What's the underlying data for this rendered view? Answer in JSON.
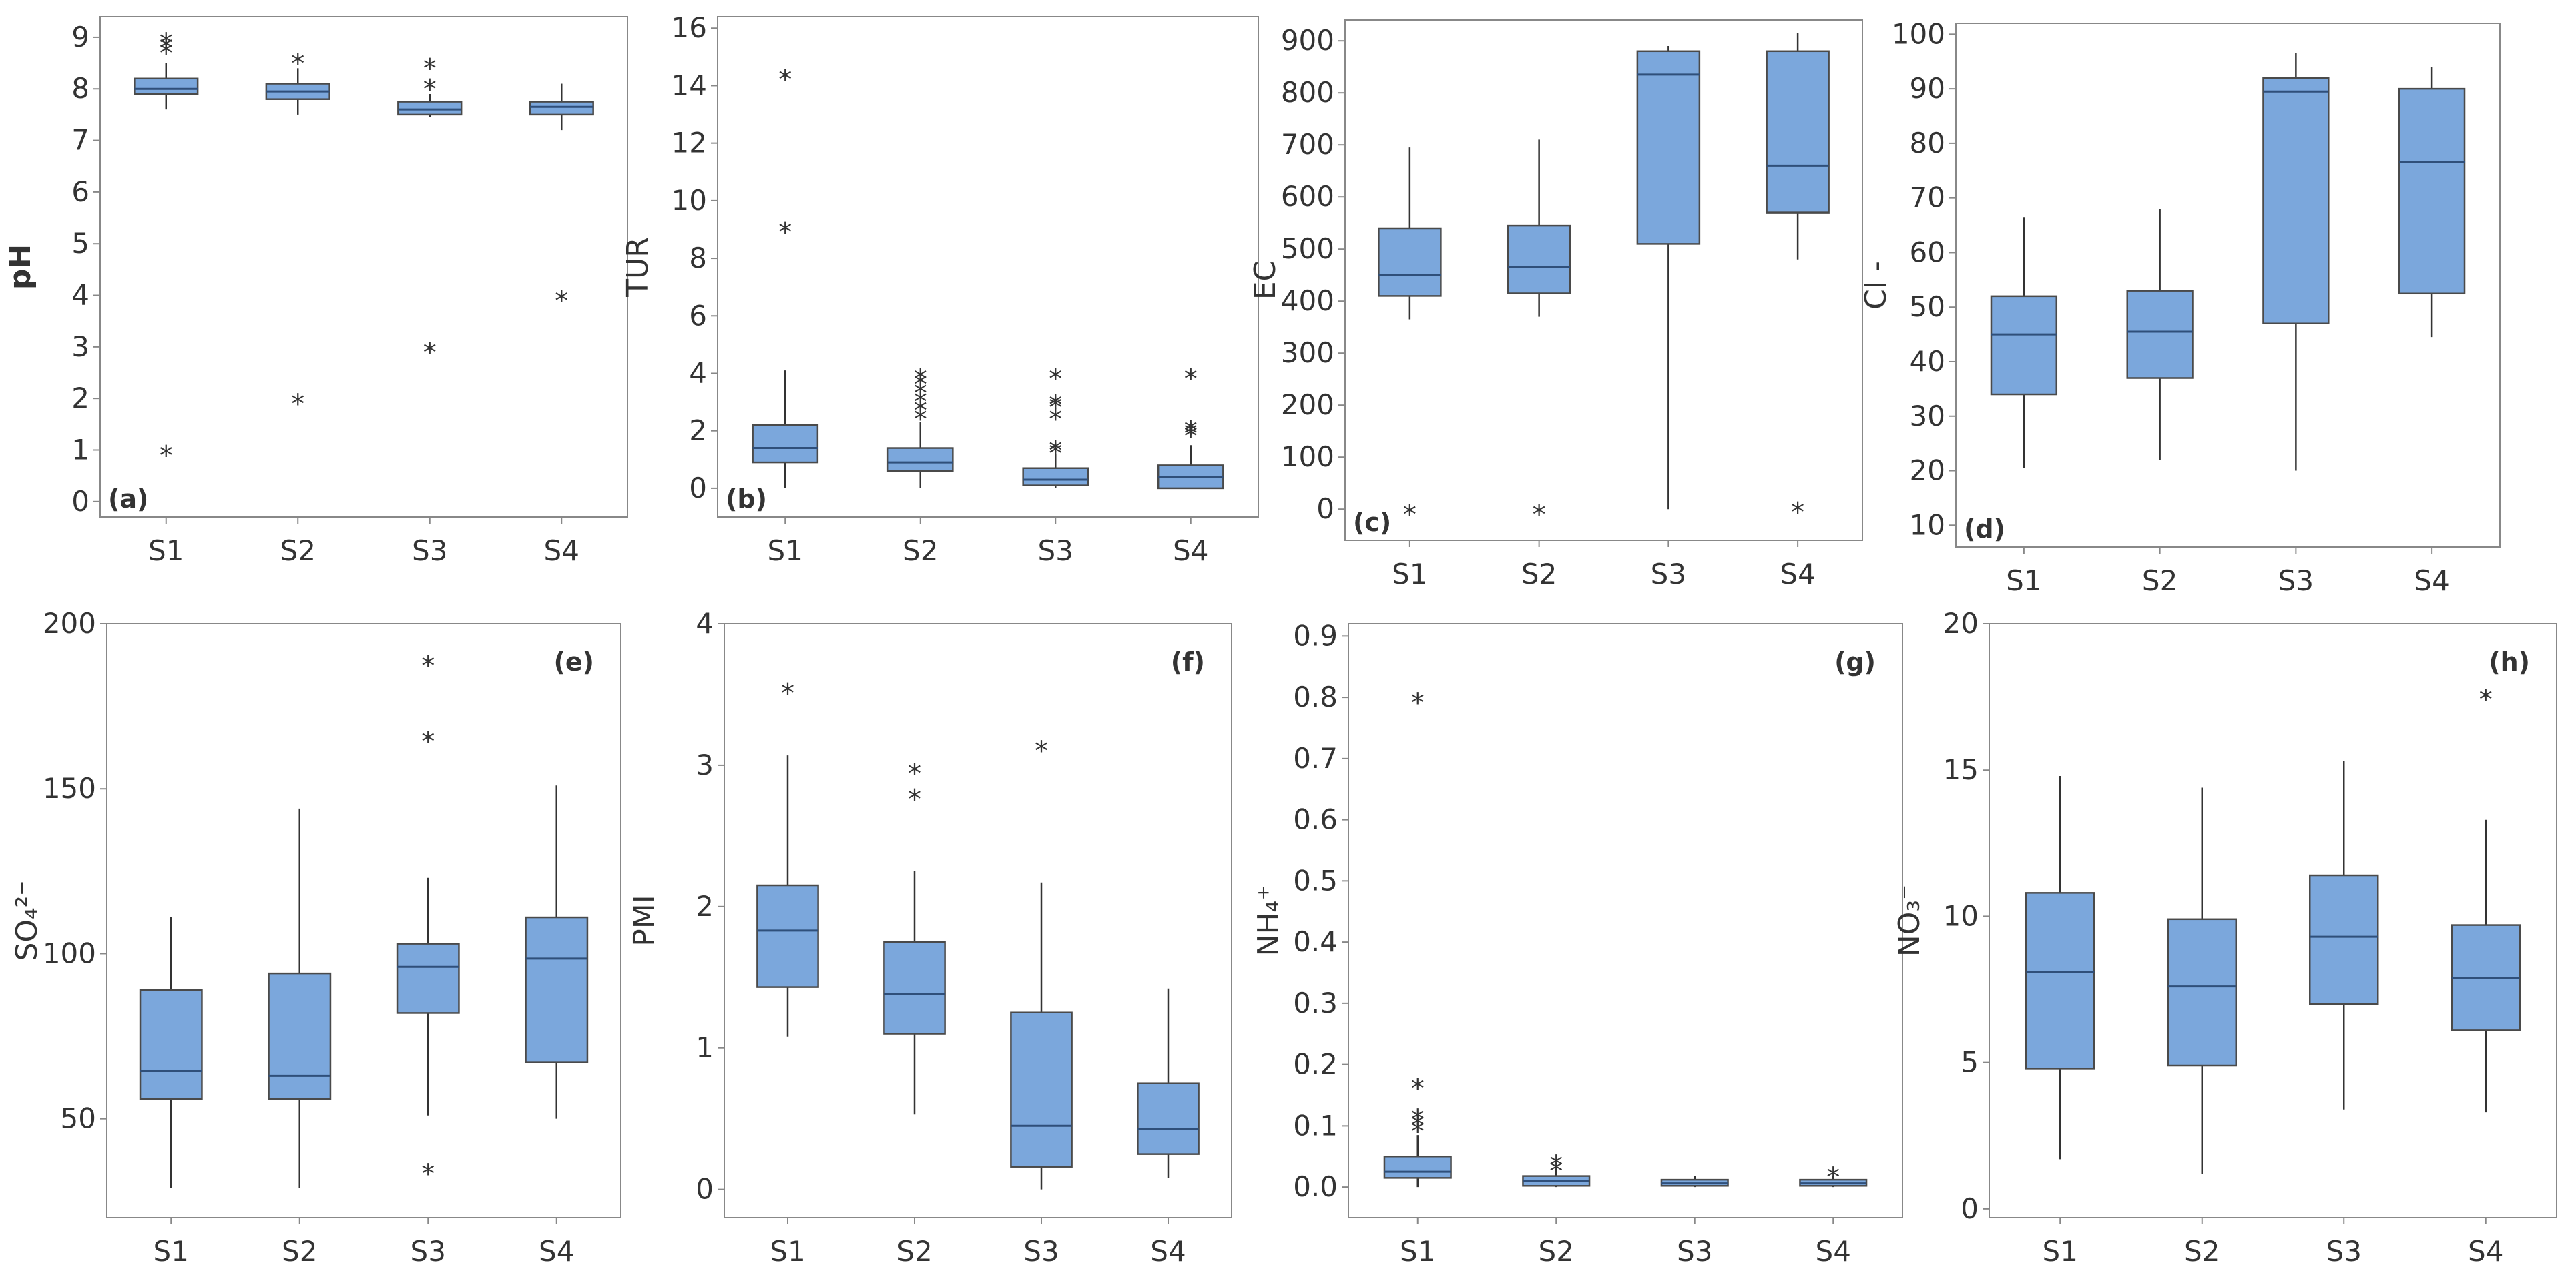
{
  "chart_data": [
    {
      "type": "box",
      "panel": "(a)",
      "ylabel": "pH",
      "ylabel_bold": true,
      "yticks": [
        0,
        1,
        2,
        3,
        4,
        5,
        6,
        7,
        8,
        9
      ],
      "ylim": [
        -0.3,
        9.4
      ],
      "categories": [
        "S1",
        "S2",
        "S3",
        "S4"
      ],
      "boxes": [
        {
          "category": "S1",
          "q1": 7.9,
          "median": 8.0,
          "q3": 8.2,
          "whisker_low": 7.6,
          "whisker_high": 8.5,
          "outliers": [
            8.8,
            8.9,
            9.0,
            1.0
          ]
        },
        {
          "category": "S2",
          "q1": 7.8,
          "median": 7.95,
          "q3": 8.1,
          "whisker_low": 7.5,
          "whisker_high": 8.4,
          "outliers": [
            8.6,
            2.0
          ]
        },
        {
          "category": "S3",
          "q1": 7.5,
          "median": 7.6,
          "q3": 7.75,
          "whisker_low": 7.45,
          "whisker_high": 7.9,
          "outliers": [
            8.1,
            8.5,
            3.0
          ]
        },
        {
          "category": "S4",
          "q1": 7.5,
          "median": 7.65,
          "q3": 7.75,
          "whisker_low": 7.2,
          "whisker_high": 8.1,
          "outliers": [
            4.0
          ]
        }
      ]
    },
    {
      "type": "box",
      "panel": "(b)",
      "ylabel": "TUR",
      "ylabel_bold": false,
      "yticks": [
        0,
        2,
        4,
        6,
        8,
        10,
        12,
        14,
        16
      ],
      "ylim": [
        -1.0,
        16.4
      ],
      "categories": [
        "S1",
        "S2",
        "S3",
        "S4"
      ],
      "boxes": [
        {
          "category": "S1",
          "q1": 0.9,
          "median": 1.4,
          "q3": 2.2,
          "whisker_low": 0.0,
          "whisker_high": 4.1,
          "outliers": [
            9.1,
            14.4
          ]
        },
        {
          "category": "S2",
          "q1": 0.6,
          "median": 0.9,
          "q3": 1.4,
          "whisker_low": 0.0,
          "whisker_high": 2.3,
          "outliers": [
            2.6,
            2.9,
            3.2,
            3.5,
            3.8,
            4.0
          ]
        },
        {
          "category": "S3",
          "q1": 0.1,
          "median": 0.3,
          "q3": 0.7,
          "whisker_low": 0.0,
          "whisker_high": 1.2,
          "outliers": [
            1.4,
            1.5,
            2.6,
            3.0,
            3.1,
            4.0
          ]
        },
        {
          "category": "S4",
          "q1": 0.0,
          "median": 0.4,
          "q3": 0.8,
          "whisker_low": 0.0,
          "whisker_high": 1.5,
          "outliers": [
            2.0,
            2.1,
            2.2,
            4.0
          ]
        }
      ]
    },
    {
      "type": "box",
      "panel": "(c)",
      "ylabel": "EC",
      "ylabel_bold": false,
      "yticks": [
        0,
        100,
        200,
        300,
        400,
        500,
        600,
        700,
        800,
        900
      ],
      "ylim": [
        -60,
        940
      ],
      "categories": [
        "S1",
        "S2",
        "S3",
        "S4"
      ],
      "boxes": [
        {
          "category": "S1",
          "q1": 410,
          "median": 450,
          "q3": 540,
          "whisker_low": 365,
          "whisker_high": 695,
          "outliers": [
            0
          ]
        },
        {
          "category": "S2",
          "q1": 415,
          "median": 465,
          "q3": 545,
          "whisker_low": 370,
          "whisker_high": 710,
          "outliers": [
            0
          ]
        },
        {
          "category": "S3",
          "q1": 510,
          "median": 835,
          "q3": 880,
          "whisker_low": 0,
          "whisker_high": 890,
          "outliers": []
        },
        {
          "category": "S4",
          "q1": 570,
          "median": 660,
          "q3": 880,
          "whisker_low": 480,
          "whisker_high": 915,
          "outliers": [
            5
          ]
        }
      ]
    },
    {
      "type": "box",
      "panel": "(d)",
      "ylabel": "Cl -",
      "ylabel_bold": false,
      "yticks": [
        10,
        20,
        30,
        40,
        50,
        60,
        70,
        80,
        90,
        100
      ],
      "ylim": [
        6,
        102
      ],
      "categories": [
        "S1",
        "S2",
        "S3",
        "S4"
      ],
      "boxes": [
        {
          "category": "S1",
          "q1": 34,
          "median": 45,
          "q3": 52,
          "whisker_low": 20.5,
          "whisker_high": 66.5,
          "outliers": []
        },
        {
          "category": "S2",
          "q1": 37,
          "median": 45.5,
          "q3": 53,
          "whisker_low": 22,
          "whisker_high": 68,
          "outliers": []
        },
        {
          "category": "S3",
          "q1": 47,
          "median": 89.5,
          "q3": 92,
          "whisker_low": 20,
          "whisker_high": 96.5,
          "outliers": []
        },
        {
          "category": "S4",
          "q1": 52.5,
          "median": 76.5,
          "q3": 90,
          "whisker_low": 44.5,
          "whisker_high": 94,
          "outliers": []
        }
      ]
    },
    {
      "type": "box",
      "panel": "(e)",
      "ylabel": "SO₄²⁻",
      "ylabel_bold": false,
      "yticks": [
        50,
        100,
        150,
        200
      ],
      "ylim": [
        20,
        200
      ],
      "categories": [
        "S1",
        "S2",
        "S3",
        "S4"
      ],
      "boxes": [
        {
          "category": "S1",
          "q1": 56,
          "median": 64.5,
          "q3": 89,
          "whisker_low": 29,
          "whisker_high": 111,
          "outliers": []
        },
        {
          "category": "S2",
          "q1": 56,
          "median": 63,
          "q3": 94,
          "whisker_low": 29,
          "whisker_high": 144,
          "outliers": []
        },
        {
          "category": "S3",
          "q1": 82,
          "median": 96,
          "q3": 103,
          "whisker_low": 51,
          "whisker_high": 123,
          "outliers": [
            35,
            166,
            189
          ]
        },
        {
          "category": "S4",
          "q1": 67,
          "median": 98.5,
          "q3": 111,
          "whisker_low": 50,
          "whisker_high": 151,
          "outliers": []
        }
      ]
    },
    {
      "type": "box",
      "panel": "(f)",
      "ylabel": "PMI",
      "ylabel_bold": false,
      "yticks": [
        0,
        1,
        2,
        3,
        4
      ],
      "ylim": [
        -0.2,
        4.0
      ],
      "categories": [
        "S1",
        "S2",
        "S3",
        "S4"
      ],
      "boxes": [
        {
          "category": "S1",
          "q1": 1.43,
          "median": 1.83,
          "q3": 2.15,
          "whisker_low": 1.08,
          "whisker_high": 3.07,
          "outliers": [
            3.55
          ]
        },
        {
          "category": "S2",
          "q1": 1.1,
          "median": 1.38,
          "q3": 1.75,
          "whisker_low": 0.53,
          "whisker_high": 2.25,
          "outliers": [
            2.8,
            2.98
          ]
        },
        {
          "category": "S3",
          "q1": 0.16,
          "median": 0.45,
          "q3": 1.25,
          "whisker_low": 0.0,
          "whisker_high": 2.17,
          "outliers": [
            3.14
          ]
        },
        {
          "category": "S4",
          "q1": 0.25,
          "median": 0.43,
          "q3": 0.75,
          "whisker_low": 0.08,
          "whisker_high": 1.42,
          "outliers": []
        }
      ]
    },
    {
      "type": "box",
      "panel": "(g)",
      "ylabel": "NH₄⁺",
      "ylabel_bold": false,
      "yticks": [
        0.0,
        0.1,
        0.2,
        0.3,
        0.4,
        0.5,
        0.6,
        0.7,
        0.8,
        0.9
      ],
      "ylim": [
        -0.05,
        0.92
      ],
      "categories": [
        "S1",
        "S2",
        "S3",
        "S4"
      ],
      "boxes": [
        {
          "category": "S1",
          "q1": 0.015,
          "median": 0.025,
          "q3": 0.05,
          "whisker_low": 0.0,
          "whisker_high": 0.085,
          "outliers": [
            0.1,
            0.11,
            0.12,
            0.17,
            0.8
          ]
        },
        {
          "category": "S2",
          "q1": 0.002,
          "median": 0.01,
          "q3": 0.018,
          "whisker_low": 0.0,
          "whisker_high": 0.03,
          "outliers": [
            0.035,
            0.045
          ]
        },
        {
          "category": "S3",
          "q1": 0.002,
          "median": 0.006,
          "q3": 0.012,
          "whisker_low": 0.0,
          "whisker_high": 0.018,
          "outliers": []
        },
        {
          "category": "S4",
          "q1": 0.002,
          "median": 0.006,
          "q3": 0.012,
          "whisker_low": 0.0,
          "whisker_high": 0.018,
          "outliers": [
            0.025
          ]
        }
      ]
    },
    {
      "type": "box",
      "panel": "(h)",
      "ylabel": "NO₃⁻",
      "ylabel_bold": false,
      "yticks": [
        0,
        5,
        10,
        15,
        20
      ],
      "ylim": [
        -0.3,
        20.0
      ],
      "categories": [
        "S1",
        "S2",
        "S3",
        "S4"
      ],
      "boxes": [
        {
          "category": "S1",
          "q1": 4.8,
          "median": 8.1,
          "q3": 10.8,
          "whisker_low": 1.7,
          "whisker_high": 14.8,
          "outliers": []
        },
        {
          "category": "S2",
          "q1": 4.9,
          "median": 7.6,
          "q3": 9.9,
          "whisker_low": 1.2,
          "whisker_high": 14.4,
          "outliers": []
        },
        {
          "category": "S3",
          "q1": 7.0,
          "median": 9.3,
          "q3": 11.4,
          "whisker_low": 3.4,
          "whisker_high": 15.3,
          "outliers": []
        },
        {
          "category": "S4",
          "q1": 6.1,
          "median": 7.9,
          "q3": 9.7,
          "whisker_low": 3.3,
          "whisker_high": 13.3,
          "outliers": [
            17.6
          ]
        }
      ]
    }
  ],
  "colors": {
    "box_fill": "#7ba7dc",
    "box_stroke": "#4a4a4a",
    "median": "#2f4f7a",
    "whisker": "#333333",
    "frame": "#888888",
    "text": "#333333"
  }
}
